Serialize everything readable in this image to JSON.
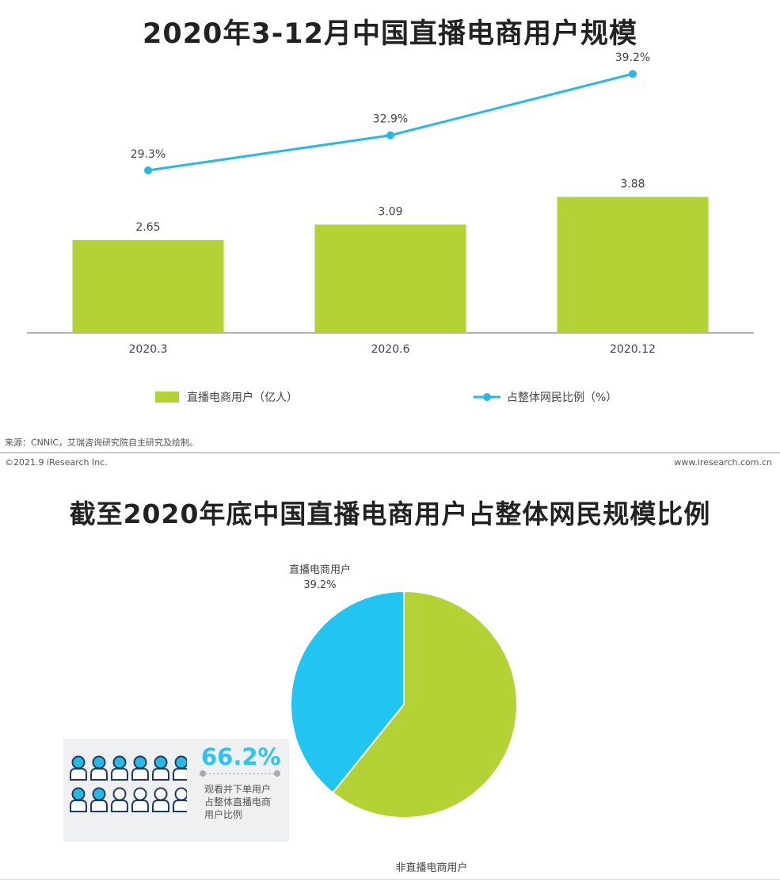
{
  "chart1": {
    "title": "2020年3-12月中国直播电商用户规模",
    "legend": {
      "bar": "直播电商用户（亿人）",
      "line": "占整体网民比例（%）"
    }
  },
  "chart2": {
    "title": "截至2020年底中国直播电商用户占整体网民规模比例",
    "slice_labels": [
      "直播电商用户",
      "39.2%",
      "非直播电商用户"
    ]
  },
  "footer": {
    "source": "来源：CNNIC，艾瑞咨询研究院自主研究及绘制。",
    "copyright": "©2021.9 iResearch Inc.",
    "website": "www.iresearch.com.cn"
  },
  "info_card": {
    "percent": "66.2%",
    "description": "观看并下单用户占整体直播电商用户比例",
    "people_total": 12,
    "people_highlighted": 8
  },
  "colors": {
    "bar": "#b2d235",
    "line": "#27b9e3",
    "pie_live": "#21c5f0",
    "pie_non_live": "#b2d235"
  },
  "chart_data": [
    {
      "type": "bar",
      "categories": [
        "2020.3",
        "2020.6",
        "2020.12"
      ],
      "series": [
        {
          "name": "直播电商用户（亿人）",
          "type": "bar",
          "values": [
            2.65,
            3.09,
            3.88
          ],
          "labels": [
            "2.65",
            "3.09",
            "3.88"
          ]
        },
        {
          "name": "占整体网民比例（%）",
          "type": "line",
          "values": [
            29.3,
            32.9,
            39.2
          ],
          "labels": [
            "29.3%",
            "32.9%",
            "39.2%"
          ]
        }
      ],
      "title": "2020年3-12月中国直播电商用户规模",
      "legend": "bottom"
    },
    {
      "type": "pie",
      "title": "截至2020年底中国直播电商用户占整体网民规模比例",
      "slices": [
        {
          "label": "直播电商用户",
          "value": 39.2,
          "value_label": "39.2%"
        },
        {
          "label": "非直播电商用户",
          "value": 60.8
        }
      ]
    }
  ]
}
